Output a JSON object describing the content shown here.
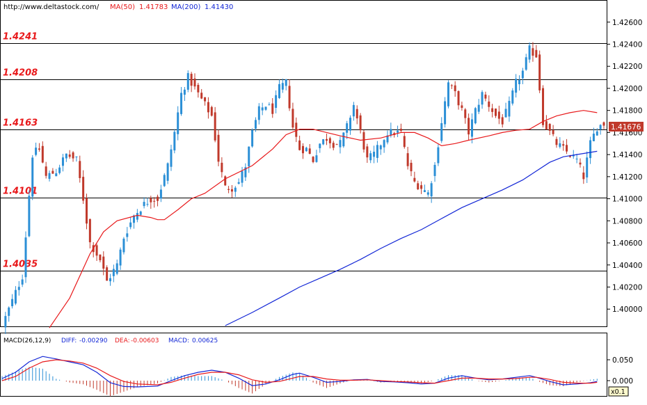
{
  "header": {
    "url": "http://www.deltastock.com/",
    "ma50_label": "MA(50)",
    "ma50_value": "1.41783",
    "ma200_label": "MA(200)",
    "ma200_value": "1.41430"
  },
  "colors": {
    "bull_candle": "#2b8fd6",
    "bear_candle": "#c0392b",
    "ma50": "#e8191b",
    "ma200": "#1226d6",
    "level_text": "#e8191b",
    "macd_diff": "#1226d6",
    "macd_dea": "#e8191b",
    "hist_pos": "#2b8fd6",
    "hist_neg": "#c0392b"
  },
  "price_panel": {
    "last_price": "1.41676",
    "ylim": [
      1.3985,
      1.4275
    ]
  },
  "macd_panel": {
    "label": "MACD(26,12,9)",
    "diff_label": "DIFF:",
    "diff_value": "-0.00290",
    "dea_label": "DEA:",
    "dea_value": "-0.00603",
    "macd_label": "MACD:",
    "macd_value": "0.00625",
    "scale_badge": "x0.1",
    "ylim": [
      -0.035,
      0.085
    ]
  },
  "chart_data": [
    {
      "type": "candlestick",
      "y_ticks": [
        "1.42600",
        "1.42400",
        "1.42200",
        "1.42000",
        "1.41800",
        "1.41600",
        "1.41400",
        "1.41200",
        "1.41000",
        "1.40800",
        "1.40600",
        "1.40400",
        "1.40200",
        "1.40000"
      ],
      "y_tick_values": [
        1.426,
        1.424,
        1.422,
        1.42,
        1.418,
        1.416,
        1.414,
        1.412,
        1.41,
        1.408,
        1.406,
        1.404,
        1.402,
        1.4
      ],
      "levels": [
        {
          "label": "1.4241",
          "value": 1.4241
        },
        {
          "label": "1.4208",
          "value": 1.4208
        },
        {
          "label": "1.4163",
          "value": 1.4163
        },
        {
          "label": "1.4101",
          "value": 1.4101
        },
        {
          "label": "1.4035",
          "value": 1.4035
        }
      ],
      "close_anchors": [
        [
          0,
          1.3985
        ],
        [
          6,
          1.403
        ],
        [
          9,
          1.414
        ],
        [
          11,
          1.4145
        ],
        [
          13,
          1.412
        ],
        [
          16,
          1.4125
        ],
        [
          19,
          1.414
        ],
        [
          22,
          1.4135
        ],
        [
          24,
          1.41
        ],
        [
          26,
          1.406
        ],
        [
          29,
          1.4045
        ],
        [
          31,
          1.4025
        ],
        [
          34,
          1.404
        ],
        [
          36,
          1.4065
        ],
        [
          39,
          1.4085
        ],
        [
          42,
          1.4095
        ],
        [
          44,
          1.41
        ],
        [
          46,
          1.41
        ],
        [
          49,
          1.413
        ],
        [
          51,
          1.416
        ],
        [
          53,
          1.4195
        ],
        [
          55,
          1.421
        ],
        [
          57,
          1.42
        ],
        [
          59,
          1.419
        ],
        [
          62,
          1.4175
        ],
        [
          64,
          1.4135
        ],
        [
          66,
          1.411
        ],
        [
          68,
          1.411
        ],
        [
          70,
          1.4115
        ],
        [
          72,
          1.413
        ],
        [
          74,
          1.416
        ],
        [
          76,
          1.418
        ],
        [
          78,
          1.4185
        ],
        [
          80,
          1.418
        ],
        [
          82,
          1.42
        ],
        [
          84,
          1.4205
        ],
        [
          86,
          1.4165
        ],
        [
          88,
          1.4145
        ],
        [
          90,
          1.4145
        ],
        [
          92,
          1.4135
        ],
        [
          94,
          1.415
        ],
        [
          96,
          1.4155
        ],
        [
          98,
          1.415
        ],
        [
          100,
          1.415
        ],
        [
          102,
          1.4165
        ],
        [
          104,
          1.4185
        ],
        [
          106,
          1.416
        ],
        [
          108,
          1.4135
        ],
        [
          110,
          1.414
        ],
        [
          112,
          1.415
        ],
        [
          114,
          1.416
        ],
        [
          116,
          1.416
        ],
        [
          118,
          1.416
        ],
        [
          120,
          1.413
        ],
        [
          122,
          1.4115
        ],
        [
          124,
          1.411
        ],
        [
          126,
          1.4105
        ],
        [
          128,
          1.413
        ],
        [
          130,
          1.417
        ],
        [
          132,
          1.4205
        ],
        [
          134,
          1.4195
        ],
        [
          136,
          1.418
        ],
        [
          138,
          1.416
        ],
        [
          140,
          1.418
        ],
        [
          142,
          1.4195
        ],
        [
          144,
          1.4185
        ],
        [
          146,
          1.4175
        ],
        [
          148,
          1.417
        ],
        [
          150,
          1.4185
        ],
        [
          152,
          1.4205
        ],
        [
          154,
          1.4215
        ],
        [
          156,
          1.4235
        ],
        [
          158,
          1.423
        ],
        [
          160,
          1.417
        ],
        [
          162,
          1.416
        ],
        [
          164,
          1.415
        ],
        [
          166,
          1.4145
        ],
        [
          168,
          1.414
        ],
        [
          170,
          1.4135
        ],
        [
          172,
          1.412
        ],
        [
          174,
          1.415
        ],
        [
          176,
          1.4165
        ],
        [
          178,
          1.4168
        ]
      ],
      "ma50_anchors": [
        [
          14,
          1.3983
        ],
        [
          20,
          1.401
        ],
        [
          26,
          1.405
        ],
        [
          30,
          1.407
        ],
        [
          34,
          1.408
        ],
        [
          40,
          1.4085
        ],
        [
          44,
          1.4083
        ],
        [
          46,
          1.4081
        ],
        [
          48,
          1.4081
        ],
        [
          52,
          1.409
        ],
        [
          56,
          1.41
        ],
        [
          60,
          1.4105
        ],
        [
          66,
          1.4118
        ],
        [
          74,
          1.413
        ],
        [
          80,
          1.4145
        ],
        [
          84,
          1.4158
        ],
        [
          88,
          1.4163
        ],
        [
          92,
          1.4163
        ],
        [
          96,
          1.416
        ],
        [
          100,
          1.4157
        ],
        [
          106,
          1.4153
        ],
        [
          112,
          1.4155
        ],
        [
          118,
          1.416
        ],
        [
          122,
          1.416
        ],
        [
          126,
          1.4155
        ],
        [
          130,
          1.4148
        ],
        [
          134,
          1.415
        ],
        [
          138,
          1.4153
        ],
        [
          144,
          1.4157
        ],
        [
          148,
          1.416
        ],
        [
          152,
          1.4162
        ],
        [
          156,
          1.4163
        ],
        [
          160,
          1.417
        ],
        [
          164,
          1.4175
        ],
        [
          168,
          1.4178
        ],
        [
          172,
          1.418
        ],
        [
          176,
          1.4178
        ]
      ],
      "ma200_anchors": [
        [
          66,
          1.3985
        ],
        [
          74,
          1.3997
        ],
        [
          82,
          1.401
        ],
        [
          88,
          1.402
        ],
        [
          94,
          1.4028
        ],
        [
          100,
          1.4036
        ],
        [
          106,
          1.4045
        ],
        [
          112,
          1.4055
        ],
        [
          118,
          1.4064
        ],
        [
          124,
          1.4072
        ],
        [
          130,
          1.4082
        ],
        [
          136,
          1.4092
        ],
        [
          142,
          1.41
        ],
        [
          148,
          1.4108
        ],
        [
          154,
          1.4117
        ],
        [
          158,
          1.4125
        ],
        [
          162,
          1.4133
        ],
        [
          166,
          1.4138
        ],
        [
          170,
          1.414
        ],
        [
          176,
          1.4143
        ]
      ]
    },
    {
      "type": "macd",
      "diff_anchors": [
        [
          0,
          0.005
        ],
        [
          4,
          0.02
        ],
        [
          8,
          0.045
        ],
        [
          12,
          0.058
        ],
        [
          16,
          0.052
        ],
        [
          20,
          0.045
        ],
        [
          24,
          0.038
        ],
        [
          28,
          0.02
        ],
        [
          32,
          -0.005
        ],
        [
          36,
          -0.014
        ],
        [
          40,
          -0.015
        ],
        [
          46,
          -0.013
        ],
        [
          50,
          0.0
        ],
        [
          54,
          0.012
        ],
        [
          58,
          0.02
        ],
        [
          62,
          0.025
        ],
        [
          66,
          0.02
        ],
        [
          70,
          0.006
        ],
        [
          74,
          -0.012
        ],
        [
          78,
          -0.008
        ],
        [
          82,
          0.002
        ],
        [
          86,
          0.015
        ],
        [
          88,
          0.018
        ],
        [
          92,
          0.008
        ],
        [
          96,
          -0.004
        ],
        [
          100,
          -0.002
        ],
        [
          104,
          0.002
        ],
        [
          108,
          0.003
        ],
        [
          112,
          -0.002
        ],
        [
          116,
          -0.003
        ],
        [
          120,
          -0.005
        ],
        [
          124,
          -0.008
        ],
        [
          128,
          -0.006
        ],
        [
          132,
          0.006
        ],
        [
          136,
          0.012
        ],
        [
          140,
          0.006
        ],
        [
          144,
          0.002
        ],
        [
          148,
          0.004
        ],
        [
          152,
          0.008
        ],
        [
          156,
          0.012
        ],
        [
          158,
          0.008
        ],
        [
          162,
          -0.002
        ],
        [
          166,
          -0.01
        ],
        [
          170,
          -0.008
        ],
        [
          174,
          -0.005
        ],
        [
          176,
          -0.002
        ]
      ],
      "dea_anchors": [
        [
          0,
          0.0
        ],
        [
          4,
          0.01
        ],
        [
          8,
          0.03
        ],
        [
          12,
          0.045
        ],
        [
          16,
          0.05
        ],
        [
          20,
          0.047
        ],
        [
          24,
          0.042
        ],
        [
          28,
          0.03
        ],
        [
          32,
          0.012
        ],
        [
          36,
          -0.002
        ],
        [
          40,
          -0.008
        ],
        [
          46,
          -0.01
        ],
        [
          50,
          -0.004
        ],
        [
          54,
          0.006
        ],
        [
          58,
          0.015
        ],
        [
          62,
          0.02
        ],
        [
          66,
          0.02
        ],
        [
          70,
          0.014
        ],
        [
          74,
          0.002
        ],
        [
          78,
          -0.004
        ],
        [
          82,
          -0.002
        ],
        [
          86,
          0.006
        ],
        [
          88,
          0.01
        ],
        [
          92,
          0.01
        ],
        [
          96,
          0.004
        ],
        [
          100,
          0.001
        ],
        [
          104,
          0.001
        ],
        [
          108,
          0.002
        ],
        [
          112,
          0.0
        ],
        [
          116,
          -0.002
        ],
        [
          120,
          -0.003
        ],
        [
          124,
          -0.005
        ],
        [
          128,
          -0.006
        ],
        [
          132,
          0.0
        ],
        [
          136,
          0.006
        ],
        [
          140,
          0.006
        ],
        [
          144,
          0.004
        ],
        [
          148,
          0.004
        ],
        [
          152,
          0.005
        ],
        [
          156,
          0.008
        ],
        [
          158,
          0.008
        ],
        [
          162,
          0.003
        ],
        [
          166,
          -0.004
        ],
        [
          170,
          -0.006
        ],
        [
          174,
          -0.006
        ],
        [
          176,
          -0.004
        ]
      ],
      "y_ticks": [
        "0.050",
        "0.000"
      ],
      "y_tick_values": [
        0.05,
        0.0
      ]
    }
  ]
}
